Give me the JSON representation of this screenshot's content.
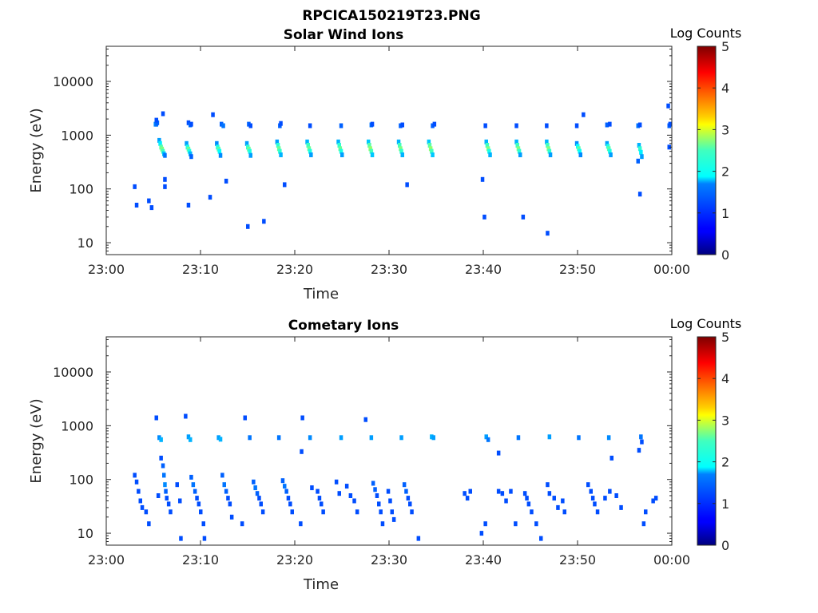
{
  "figure_title": "RPCICA150219T23.PNG",
  "chart_data": [
    {
      "type": "heatmap",
      "title": "Solar Wind Ions",
      "xlabel": "Time",
      "ylabel": "Energy (eV)",
      "yscale": "log",
      "ylim": [
        6,
        45000
      ],
      "x_tick_labels": [
        "23:00",
        "23:10",
        "23:20",
        "23:30",
        "23:40",
        "23:50",
        "00:00"
      ],
      "y_tick_labels": [
        "10",
        "100",
        "1000",
        "10000"
      ],
      "y_tick_values": [
        10,
        100,
        1000,
        10000
      ],
      "colorbar": {
        "label": "Log Counts",
        "range": [
          0,
          5
        ],
        "tick_labels": [
          "0",
          "1",
          "2",
          "3",
          "4",
          "5"
        ],
        "colormap": "jet"
      },
      "cells": [
        [
          5.2,
          1600,
          1.3
        ],
        [
          5.3,
          1600,
          1.2
        ],
        [
          5.4,
          1700,
          1.1
        ],
        [
          5.3,
          1900,
          1
        ],
        [
          8.7,
          1700,
          1
        ],
        [
          8.9,
          1550,
          1.2
        ],
        [
          9.0,
          1600,
          1
        ],
        [
          12.2,
          1600,
          1.1
        ],
        [
          12.4,
          1500,
          1.2
        ],
        [
          15.1,
          1600,
          1.1
        ],
        [
          15.3,
          1500,
          1
        ],
        [
          18.4,
          1500,
          1.1
        ],
        [
          18.5,
          1650,
          1
        ],
        [
          21.6,
          1500,
          1
        ],
        [
          24.9,
          1500,
          1.1
        ],
        [
          28.1,
          1550,
          1.2
        ],
        [
          28.2,
          1600,
          1
        ],
        [
          31.2,
          1500,
          1.1
        ],
        [
          31.4,
          1550,
          1
        ],
        [
          34.6,
          1500,
          1.1
        ],
        [
          34.8,
          1600,
          1
        ],
        [
          40.2,
          1500,
          1
        ],
        [
          43.5,
          1500,
          1
        ],
        [
          46.7,
          1500,
          1
        ],
        [
          49.9,
          1500,
          1
        ],
        [
          53.1,
          1550,
          1.1
        ],
        [
          53.4,
          1600,
          1
        ],
        [
          56.4,
          1500,
          1.2
        ],
        [
          56.6,
          1550,
          1
        ],
        [
          59.7,
          1500,
          1.1
        ],
        [
          59.8,
          1600,
          1
        ],
        [
          5.6,
          800,
          1.4
        ],
        [
          5.7,
          700,
          1.8
        ],
        [
          5.8,
          600,
          2.3
        ],
        [
          5.9,
          550,
          2.5
        ],
        [
          6.0,
          500,
          2.2
        ],
        [
          6.1,
          450,
          1.6
        ],
        [
          6.2,
          420,
          1.2
        ],
        [
          8.5,
          700,
          1.4
        ],
        [
          8.6,
          600,
          2
        ],
        [
          8.7,
          550,
          2.4
        ],
        [
          8.8,
          500,
          2
        ],
        [
          8.9,
          450,
          1.5
        ],
        [
          9.0,
          400,
          1.1
        ],
        [
          11.7,
          700,
          1.3
        ],
        [
          11.8,
          600,
          2
        ],
        [
          11.9,
          550,
          2.3
        ],
        [
          12.0,
          500,
          1.9
        ],
        [
          12.1,
          420,
          1.3
        ],
        [
          14.9,
          700,
          1.4
        ],
        [
          15.0,
          600,
          2.1
        ],
        [
          15.1,
          550,
          2.4
        ],
        [
          15.2,
          500,
          2
        ],
        [
          15.3,
          420,
          1.4
        ],
        [
          18.1,
          750,
          1.4
        ],
        [
          18.2,
          650,
          2.1
        ],
        [
          18.3,
          560,
          2.4
        ],
        [
          18.4,
          500,
          2.1
        ],
        [
          18.5,
          430,
          1.5
        ],
        [
          21.3,
          750,
          1.5
        ],
        [
          21.4,
          650,
          2.2
        ],
        [
          21.5,
          560,
          2.4
        ],
        [
          21.6,
          500,
          2
        ],
        [
          21.7,
          430,
          1.4
        ],
        [
          24.6,
          750,
          1.5
        ],
        [
          24.7,
          650,
          2.1
        ],
        [
          24.8,
          560,
          2.4
        ],
        [
          24.9,
          500,
          2
        ],
        [
          25.0,
          430,
          1.4
        ],
        [
          27.8,
          750,
          1.6
        ],
        [
          27.9,
          650,
          2.3
        ],
        [
          28.0,
          560,
          2.6
        ],
        [
          28.1,
          500,
          2.2
        ],
        [
          28.2,
          430,
          1.6
        ],
        [
          31.0,
          750,
          1.5
        ],
        [
          31.1,
          650,
          2.2
        ],
        [
          31.2,
          560,
          2.5
        ],
        [
          31.3,
          500,
          2.1
        ],
        [
          31.4,
          430,
          1.5
        ],
        [
          34.2,
          750,
          1.6
        ],
        [
          34.3,
          650,
          2.3
        ],
        [
          34.4,
          560,
          2.6
        ],
        [
          34.5,
          500,
          2.2
        ],
        [
          34.6,
          430,
          1.6
        ],
        [
          40.3,
          750,
          1.5
        ],
        [
          40.4,
          650,
          2.2
        ],
        [
          40.5,
          560,
          2.5
        ],
        [
          40.6,
          500,
          2
        ],
        [
          40.7,
          430,
          1.5
        ],
        [
          43.5,
          750,
          1.5
        ],
        [
          43.6,
          650,
          2.2
        ],
        [
          43.7,
          560,
          2.5
        ],
        [
          43.8,
          500,
          2.1
        ],
        [
          43.9,
          430,
          1.4
        ],
        [
          46.7,
          750,
          1.5
        ],
        [
          46.8,
          650,
          2.2
        ],
        [
          46.9,
          560,
          2.5
        ],
        [
          47.0,
          500,
          2.1
        ],
        [
          47.1,
          430,
          1.4
        ],
        [
          49.9,
          700,
          1.3
        ],
        [
          50.0,
          620,
          1.9
        ],
        [
          50.1,
          560,
          2.3
        ],
        [
          50.2,
          500,
          1.9
        ],
        [
          50.3,
          430,
          1.3
        ],
        [
          53.1,
          700,
          1.4
        ],
        [
          53.2,
          620,
          2
        ],
        [
          53.3,
          560,
          2.3
        ],
        [
          53.4,
          500,
          2
        ],
        [
          53.5,
          430,
          1.4
        ],
        [
          56.5,
          650,
          1.5
        ],
        [
          56.6,
          560,
          2.1
        ],
        [
          56.7,
          480,
          1.8
        ],
        [
          56.8,
          400,
          1.4
        ],
        [
          56.4,
          330,
          1.1
        ],
        [
          59.7,
          600,
          1
        ],
        [
          6.2,
          110,
          1
        ],
        [
          6.2,
          150,
          1
        ],
        [
          3.0,
          110,
          1
        ],
        [
          3.2,
          50,
          1
        ],
        [
          4.5,
          60,
          1
        ],
        [
          4.8,
          45,
          1
        ],
        [
          8.7,
          50,
          1
        ],
        [
          11.0,
          70,
          1
        ],
        [
          12.7,
          140,
          1
        ],
        [
          15.0,
          20,
          1
        ],
        [
          16.7,
          25,
          1
        ],
        [
          18.9,
          120,
          1
        ],
        [
          31.9,
          120,
          1
        ],
        [
          39.9,
          150,
          1
        ],
        [
          40.1,
          30,
          1
        ],
        [
          44.2,
          30,
          1
        ],
        [
          46.8,
          15,
          1
        ],
        [
          56.6,
          80,
          1
        ],
        [
          6.0,
          2500,
          1
        ],
        [
          11.3,
          2400,
          1
        ],
        [
          50.6,
          2400,
          1
        ],
        [
          59.6,
          3500,
          1
        ]
      ]
    },
    {
      "type": "heatmap",
      "title": "Cometary Ions",
      "xlabel": "Time",
      "ylabel": "Energy (eV)",
      "yscale": "log",
      "ylim": [
        6,
        45000
      ],
      "x_tick_labels": [
        "23:00",
        "23:10",
        "23:20",
        "23:30",
        "23:40",
        "23:50",
        "00:00"
      ],
      "y_tick_labels": [
        "10",
        "100",
        "1000",
        "10000"
      ],
      "y_tick_values": [
        10,
        100,
        1000,
        10000
      ],
      "colorbar": {
        "label": "Log Counts",
        "range": [
          0,
          5
        ],
        "tick_labels": [
          "0",
          "1",
          "2",
          "3",
          "4",
          "5"
        ],
        "colormap": "jet"
      },
      "cells": [
        [
          5.3,
          1400,
          1
        ],
        [
          8.4,
          1500,
          1
        ],
        [
          14.7,
          1400,
          1
        ],
        [
          20.8,
          1400,
          1
        ],
        [
          27.5,
          1300,
          1
        ],
        [
          5.6,
          600,
          1.3
        ],
        [
          5.8,
          550,
          1.5
        ],
        [
          8.7,
          620,
          1.4
        ],
        [
          8.9,
          550,
          1.5
        ],
        [
          11.9,
          600,
          1.4
        ],
        [
          12.1,
          560,
          1.5
        ],
        [
          15.2,
          600,
          1.2
        ],
        [
          18.3,
          600,
          1.2
        ],
        [
          21.6,
          600,
          1.3
        ],
        [
          24.9,
          600,
          1.4
        ],
        [
          28.1,
          600,
          1.4
        ],
        [
          31.3,
          600,
          1.4
        ],
        [
          34.5,
          620,
          1.5
        ],
        [
          34.7,
          600,
          1.4
        ],
        [
          40.3,
          620,
          1.4
        ],
        [
          40.5,
          550,
          1.2
        ],
        [
          43.7,
          600,
          1.2
        ],
        [
          47.0,
          620,
          1.4
        ],
        [
          50.1,
          600,
          1.2
        ],
        [
          53.3,
          600,
          1.3
        ],
        [
          56.7,
          620,
          1.2
        ],
        [
          56.8,
          500,
          1
        ],
        [
          56.5,
          350,
          1
        ],
        [
          20.7,
          330,
          1
        ],
        [
          41.6,
          310,
          1
        ],
        [
          53.6,
          250,
          1
        ],
        [
          3.0,
          120,
          1
        ],
        [
          3.2,
          90,
          1
        ],
        [
          3.4,
          60,
          1
        ],
        [
          3.6,
          40,
          1
        ],
        [
          3.8,
          30,
          1
        ],
        [
          4.2,
          25,
          1
        ],
        [
          4.5,
          15,
          1
        ],
        [
          5.8,
          250,
          1
        ],
        [
          6.0,
          180,
          1.1
        ],
        [
          6.1,
          120,
          1.2
        ],
        [
          6.2,
          80,
          1.3
        ],
        [
          6.3,
          60,
          1.1
        ],
        [
          6.4,
          45,
          1
        ],
        [
          6.6,
          35,
          1
        ],
        [
          6.8,
          25,
          1
        ],
        [
          5.5,
          50,
          1
        ],
        [
          7.5,
          80,
          1
        ],
        [
          7.8,
          40,
          1
        ],
        [
          7.9,
          8,
          1
        ],
        [
          9.0,
          110,
          1.1
        ],
        [
          9.2,
          80,
          1.2
        ],
        [
          9.4,
          60,
          1.1
        ],
        [
          9.6,
          45,
          1
        ],
        [
          9.8,
          35,
          1
        ],
        [
          10.0,
          25,
          1
        ],
        [
          10.3,
          15,
          1
        ],
        [
          10.4,
          8,
          1
        ],
        [
          12.3,
          120,
          1.1
        ],
        [
          12.5,
          80,
          1.2
        ],
        [
          12.7,
          60,
          1.1
        ],
        [
          12.9,
          45,
          1
        ],
        [
          13.1,
          35,
          1
        ],
        [
          13.3,
          20,
          1
        ],
        [
          14.4,
          15,
          1
        ],
        [
          15.6,
          90,
          1.1
        ],
        [
          15.8,
          70,
          1.2
        ],
        [
          16.0,
          55,
          1.1
        ],
        [
          16.2,
          45,
          1
        ],
        [
          16.4,
          35,
          1
        ],
        [
          16.6,
          25,
          1
        ],
        [
          18.7,
          95,
          1.1
        ],
        [
          18.9,
          75,
          1.2
        ],
        [
          19.1,
          60,
          1.1
        ],
        [
          19.3,
          45,
          1
        ],
        [
          19.5,
          35,
          1
        ],
        [
          19.7,
          25,
          1
        ],
        [
          20.6,
          15,
          1
        ],
        [
          21.8,
          70,
          1
        ],
        [
          22.4,
          60,
          1
        ],
        [
          22.6,
          45,
          1
        ],
        [
          22.8,
          35,
          1
        ],
        [
          23.0,
          25,
          1
        ],
        [
          24.4,
          90,
          1
        ],
        [
          24.7,
          55,
          1
        ],
        [
          25.5,
          75,
          1
        ],
        [
          25.9,
          50,
          1
        ],
        [
          26.3,
          40,
          1
        ],
        [
          26.6,
          25,
          1
        ],
        [
          28.3,
          85,
          1.1
        ],
        [
          28.5,
          65,
          1.1
        ],
        [
          28.7,
          50,
          1
        ],
        [
          28.9,
          35,
          1
        ],
        [
          29.1,
          25,
          1
        ],
        [
          29.3,
          15,
          1
        ],
        [
          29.9,
          60,
          1
        ],
        [
          30.1,
          40,
          1
        ],
        [
          30.3,
          25,
          1
        ],
        [
          30.5,
          18,
          1
        ],
        [
          31.6,
          80,
          1.1
        ],
        [
          31.8,
          60,
          1.1
        ],
        [
          32.0,
          45,
          1
        ],
        [
          32.2,
          35,
          1
        ],
        [
          32.4,
          25,
          1
        ],
        [
          33.1,
          8,
          1
        ],
        [
          38.0,
          55,
          1
        ],
        [
          38.3,
          45,
          1
        ],
        [
          38.6,
          60,
          1
        ],
        [
          39.8,
          10,
          1
        ],
        [
          40.2,
          15,
          1
        ],
        [
          41.6,
          60,
          1
        ],
        [
          42.0,
          55,
          1
        ],
        [
          42.4,
          40,
          1
        ],
        [
          42.9,
          60,
          1
        ],
        [
          43.4,
          15,
          1
        ],
        [
          44.4,
          55,
          1
        ],
        [
          44.6,
          45,
          1
        ],
        [
          44.8,
          35,
          1
        ],
        [
          45.1,
          25,
          1
        ],
        [
          45.6,
          15,
          1
        ],
        [
          46.1,
          8,
          1
        ],
        [
          46.8,
          80,
          1
        ],
        [
          47.0,
          55,
          1
        ],
        [
          47.5,
          45,
          1
        ],
        [
          47.9,
          30,
          1
        ],
        [
          48.4,
          40,
          1
        ],
        [
          48.6,
          25,
          1
        ],
        [
          51.1,
          80,
          1
        ],
        [
          51.4,
          60,
          1
        ],
        [
          51.6,
          45,
          1
        ],
        [
          51.8,
          35,
          1
        ],
        [
          52.1,
          25,
          1
        ],
        [
          52.9,
          45,
          1
        ],
        [
          53.4,
          60,
          1
        ],
        [
          54.1,
          50,
          1
        ],
        [
          54.6,
          30,
          1
        ],
        [
          57.0,
          15,
          1
        ],
        [
          57.2,
          25,
          1
        ],
        [
          58.0,
          40,
          1
        ],
        [
          58.3,
          45,
          1
        ]
      ]
    }
  ]
}
